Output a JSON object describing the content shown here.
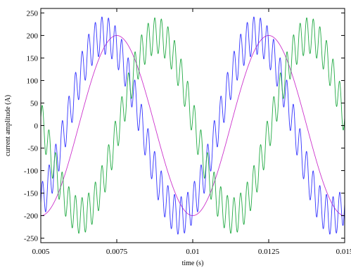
{
  "chart_data": {
    "type": "line",
    "xlabel": "time (s)",
    "ylabel": "current amplitude (A)",
    "xlim": [
      0.005,
      0.015
    ],
    "ylim": [
      -260,
      260
    ],
    "x_ticks": [
      0.005,
      0.0075,
      0.01,
      0.0125,
      0.015
    ],
    "x_tick_labels": [
      "0.005",
      "0.0075",
      "0.01",
      "0.0125",
      "0.015"
    ],
    "y_ticks": [
      250,
      200,
      150,
      100,
      50,
      0,
      -50,
      -100,
      -150,
      -200,
      -250
    ],
    "y_tick_labels": [
      "250",
      "200",
      "150",
      "100",
      "50",
      "0",
      "-50",
      "-100",
      "-150",
      "-200",
      "-250"
    ],
    "grid": false,
    "frequency_hz": 200,
    "series": [
      {
        "color": "#cc33cc",
        "amplitude": 200,
        "phase_deg": -90,
        "ripple_amplitude": 0,
        "ripple_frequency_hz": 0
      },
      {
        "color": "#3333ff",
        "amplitude": 200,
        "phase_deg": -60,
        "ripple_amplitude": 42,
        "ripple_frequency_hz": 4600
      },
      {
        "color": "#22aa44",
        "amplitude": 200,
        "phase_deg": -185,
        "ripple_amplitude": 40,
        "ripple_frequency_hz": 4600
      }
    ]
  }
}
